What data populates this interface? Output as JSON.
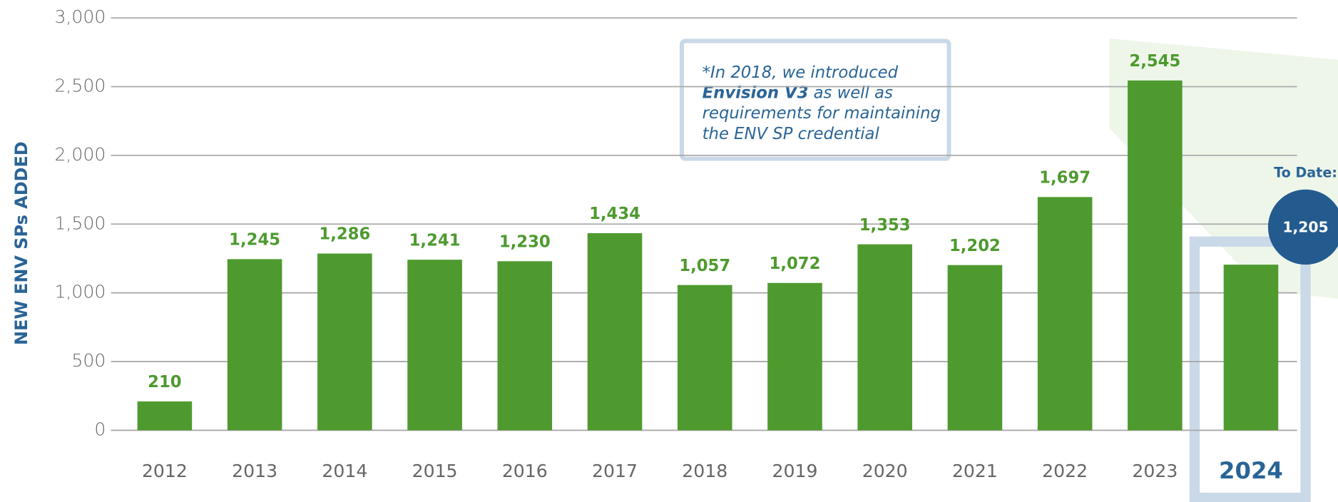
{
  "chart_data": {
    "type": "bar",
    "y_axis_label": "NEW ENV SPs ADDED",
    "categories": [
      "2012",
      "2013",
      "2014",
      "2015",
      "2016",
      "2017",
      "2018",
      "2019",
      "2020",
      "2021",
      "2022",
      "2023",
      "2024"
    ],
    "values": [
      210,
      1245,
      1286,
      1241,
      1230,
      1434,
      1057,
      1072,
      1353,
      1202,
      1697,
      2545,
      1205
    ],
    "value_labels": [
      "210",
      "1,245",
      "1,286",
      "1,241",
      "1,230",
      "1,434",
      "1,057",
      "1,072",
      "1,353",
      "1,202",
      "1,697",
      "2,545",
      "1,205"
    ],
    "color": "#4e9a2f",
    "ylim": [
      0,
      3000
    ],
    "yticks": [
      0,
      500,
      {
        "value": 1000,
        "label": "1,000"
      },
      {
        "value": 1500,
        "label": "1,500"
      },
      {
        "value": 2000,
        "label": "2,000"
      },
      {
        "value": 2500,
        "label": "2,500"
      },
      {
        "value": 3000,
        "label": "3,000"
      }
    ],
    "grid": true,
    "highlight_label": "To Date:",
    "annotation": {
      "line1": "*In 2018, we introduced",
      "bold": "Envision V3",
      "line2_rest": " as well as",
      "line3": "requirements for maintaining",
      "line4": "the ENV SP credential"
    }
  }
}
